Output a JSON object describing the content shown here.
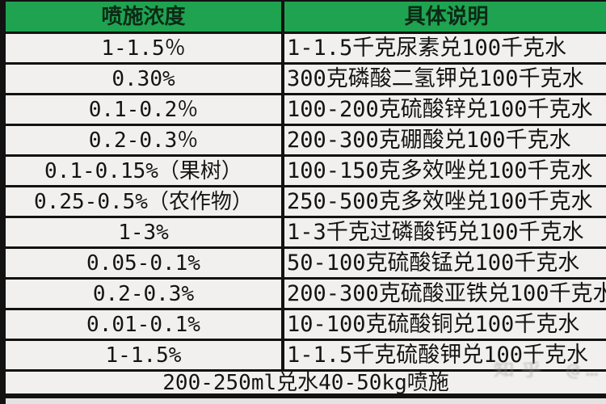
{
  "table": {
    "headers": [
      "喷施浓度",
      "具体说明"
    ],
    "rows": [
      {
        "concentration": "1-1.5％",
        "description": "1-1.5千克尿素兑100千克水"
      },
      {
        "concentration": "0.30%",
        "description": "300克磷酸二氢钾兑100千克水"
      },
      {
        "concentration": "0.1-0.2％",
        "description": "100-200克硫酸锌兑100千克水"
      },
      {
        "concentration": "0.2-0.3％",
        "description": "200-300克硼酸兑100千克水"
      },
      {
        "concentration": "0.1-0.15%（果树）",
        "description": "100-150克多效唑兑100千克水"
      },
      {
        "concentration": "0.25-0.5%（农作物）",
        "description": "250-500克多效唑兑100千克水"
      },
      {
        "concentration": "1-3%",
        "description": "1-3千克过磷酸钙兑100千克水"
      },
      {
        "concentration": "0.05-0.1%",
        "description": "50-100克硫酸锰兑100千克水"
      },
      {
        "concentration": "0.2-0.3%",
        "description": "200-300克硫酸亚铁兑100千克水"
      },
      {
        "concentration": "0.01-0.1%",
        "description": "10-100克硫酸铜兑100千克水"
      },
      {
        "concentration": "1-1.5%",
        "description": "1-1.5千克硫酸钾兑100千克水"
      }
    ],
    "footer": "200-250ml兑水40-50kg喷施"
  },
  "watermark": {
    "text": "知乎 @…"
  },
  "colors": {
    "header_green": "#1fa351",
    "cell_background": "#f1f0ee",
    "border": "#121212"
  }
}
